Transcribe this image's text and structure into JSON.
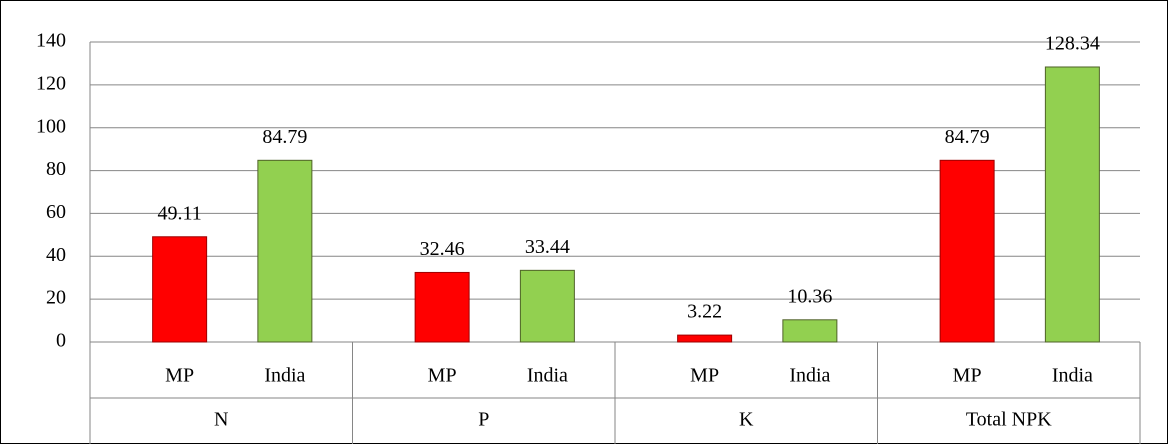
{
  "chart_data": {
    "type": "bar",
    "categories": [
      "N",
      "P",
      "K",
      "Total NPK"
    ],
    "series": [
      {
        "name": "MP",
        "color": "#ff0000",
        "values": [
          49.11,
          32.46,
          3.22,
          84.79
        ]
      },
      {
        "name": "India",
        "color": "#92d050",
        "values": [
          84.79,
          33.44,
          10.36,
          128.34
        ]
      }
    ],
    "ylim": [
      0,
      140
    ],
    "yticks": [
      0,
      20,
      40,
      60,
      80,
      100,
      120,
      140
    ],
    "grid": true
  }
}
